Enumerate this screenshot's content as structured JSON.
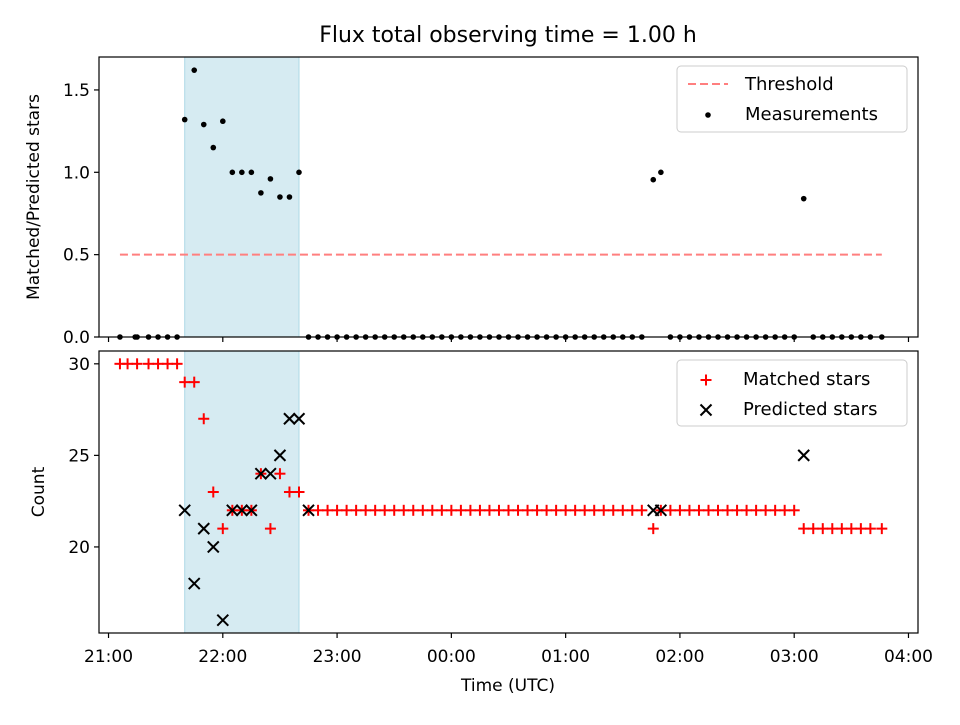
{
  "colors": {
    "shade": "#add8e6",
    "threshold": "#ff7f7f",
    "measurements": "#000000",
    "matched": "#ff0000",
    "predicted": "#000000"
  },
  "chart_data": [
    {
      "type": "scatter",
      "title": "Flux total observing time = 1.00 h",
      "xlabel": "",
      "ylabel": "Matched/Predicted stars",
      "xlim": [
        "20:55",
        "04:05"
      ],
      "ylim": [
        0,
        1.7
      ],
      "x_ticks": [
        "21:00",
        "22:00",
        "23:00",
        "00:00",
        "01:00",
        "02:00",
        "03:00",
        "04:00"
      ],
      "y_ticks": [
        "0.0",
        "0.5",
        "1.0",
        "1.5"
      ],
      "shaded_span": [
        "21:40",
        "22:40"
      ],
      "legend": {
        "placement": "top-right",
        "entries": [
          "Threshold",
          "Measurements"
        ]
      },
      "threshold": {
        "name": "Threshold",
        "y": 0.5,
        "x_range": [
          "21:06",
          "03:46"
        ]
      },
      "series": [
        {
          "name": "Measurements",
          "points": [
            [
              "21:06",
              0
            ],
            [
              "21:14",
              0
            ],
            [
              "21:15",
              0
            ],
            [
              "21:21",
              0
            ],
            [
              "21:26",
              0
            ],
            [
              "21:31",
              0
            ],
            [
              "21:36",
              0
            ],
            [
              "21:40",
              1.32
            ],
            [
              "21:45",
              1.62
            ],
            [
              "21:50",
              1.29
            ],
            [
              "21:55",
              1.15
            ],
            [
              "22:00",
              1.31
            ],
            [
              "22:05",
              1.0
            ],
            [
              "22:10",
              1.0
            ],
            [
              "22:15",
              1.0
            ],
            [
              "22:20",
              0.875
            ],
            [
              "22:25",
              0.96
            ],
            [
              "22:30",
              0.85
            ],
            [
              "22:35",
              0.85
            ],
            [
              "22:40",
              1.0
            ],
            [
              "22:45",
              0
            ],
            [
              "22:50",
              0
            ],
            [
              "22:55",
              0
            ],
            [
              "23:00",
              0
            ],
            [
              "23:05",
              0
            ],
            [
              "23:10",
              0
            ],
            [
              "23:15",
              0
            ],
            [
              "23:20",
              0
            ],
            [
              "23:25",
              0
            ],
            [
              "23:30",
              0
            ],
            [
              "23:35",
              0
            ],
            [
              "23:40",
              0
            ],
            [
              "23:45",
              0
            ],
            [
              "23:50",
              0
            ],
            [
              "23:55",
              0
            ],
            [
              "00:00",
              0
            ],
            [
              "00:05",
              0
            ],
            [
              "00:10",
              0
            ],
            [
              "00:15",
              0
            ],
            [
              "00:20",
              0
            ],
            [
              "00:25",
              0
            ],
            [
              "00:30",
              0
            ],
            [
              "00:35",
              0
            ],
            [
              "00:40",
              0
            ],
            [
              "00:45",
              0
            ],
            [
              "00:50",
              0
            ],
            [
              "00:55",
              0
            ],
            [
              "01:00",
              0
            ],
            [
              "01:05",
              0
            ],
            [
              "01:10",
              0
            ],
            [
              "01:15",
              0
            ],
            [
              "01:20",
              0
            ],
            [
              "01:25",
              0
            ],
            [
              "01:30",
              0
            ],
            [
              "01:35",
              0
            ],
            [
              "01:40",
              0
            ],
            [
              "01:46",
              0.955
            ],
            [
              "01:50",
              1.0
            ],
            [
              "01:55",
              0
            ],
            [
              "02:00",
              0
            ],
            [
              "02:05",
              0
            ],
            [
              "02:10",
              0
            ],
            [
              "02:15",
              0
            ],
            [
              "02:20",
              0
            ],
            [
              "02:25",
              0
            ],
            [
              "02:30",
              0
            ],
            [
              "02:35",
              0
            ],
            [
              "02:40",
              0
            ],
            [
              "02:45",
              0
            ],
            [
              "02:50",
              0
            ],
            [
              "02:55",
              0
            ],
            [
              "03:00",
              0
            ],
            [
              "03:05",
              0.84
            ],
            [
              "03:10",
              0
            ],
            [
              "03:15",
              0
            ],
            [
              "03:20",
              0
            ],
            [
              "03:25",
              0
            ],
            [
              "03:30",
              0
            ],
            [
              "03:35",
              0
            ],
            [
              "03:40",
              0
            ],
            [
              "03:46",
              0
            ]
          ]
        }
      ]
    },
    {
      "type": "scatter",
      "title": "",
      "xlabel": "Time (UTC)",
      "ylabel": "Count",
      "xlim": [
        "20:55",
        "04:05"
      ],
      "ylim": [
        15.3,
        30.7
      ],
      "x_ticks": [
        "21:00",
        "22:00",
        "23:00",
        "00:00",
        "01:00",
        "02:00",
        "03:00",
        "04:00"
      ],
      "y_ticks": [
        "20",
        "25",
        "30"
      ],
      "shaded_span": [
        "21:40",
        "22:40"
      ],
      "legend": {
        "placement": "top-right",
        "entries": [
          "Matched stars",
          "Predicted stars"
        ]
      },
      "series": [
        {
          "name": "Matched stars",
          "points": [
            [
              "21:06",
              30
            ],
            [
              "21:10",
              30
            ],
            [
              "21:15",
              30
            ],
            [
              "21:21",
              30
            ],
            [
              "21:26",
              30
            ],
            [
              "21:31",
              30
            ],
            [
              "21:36",
              30
            ],
            [
              "21:40",
              29
            ],
            [
              "21:45",
              29
            ],
            [
              "21:50",
              27
            ],
            [
              "21:55",
              23
            ],
            [
              "22:00",
              21
            ],
            [
              "22:05",
              22
            ],
            [
              "22:10",
              22
            ],
            [
              "22:15",
              22
            ],
            [
              "22:20",
              24
            ],
            [
              "22:25",
              21
            ],
            [
              "22:30",
              24
            ],
            [
              "22:35",
              23
            ],
            [
              "22:40",
              23
            ],
            [
              "22:45",
              22
            ],
            [
              "22:50",
              22
            ],
            [
              "22:55",
              22
            ],
            [
              "23:00",
              22
            ],
            [
              "23:05",
              22
            ],
            [
              "23:10",
              22
            ],
            [
              "23:15",
              22
            ],
            [
              "23:20",
              22
            ],
            [
              "23:25",
              22
            ],
            [
              "23:30",
              22
            ],
            [
              "23:35",
              22
            ],
            [
              "23:40",
              22
            ],
            [
              "23:45",
              22
            ],
            [
              "23:50",
              22
            ],
            [
              "23:55",
              22
            ],
            [
              "00:00",
              22
            ],
            [
              "00:05",
              22
            ],
            [
              "00:10",
              22
            ],
            [
              "00:15",
              22
            ],
            [
              "00:20",
              22
            ],
            [
              "00:25",
              22
            ],
            [
              "00:30",
              22
            ],
            [
              "00:35",
              22
            ],
            [
              "00:40",
              22
            ],
            [
              "00:45",
              22
            ],
            [
              "00:50",
              22
            ],
            [
              "00:55",
              22
            ],
            [
              "01:00",
              22
            ],
            [
              "01:05",
              22
            ],
            [
              "01:10",
              22
            ],
            [
              "01:15",
              22
            ],
            [
              "01:20",
              22
            ],
            [
              "01:25",
              22
            ],
            [
              "01:30",
              22
            ],
            [
              "01:35",
              22
            ],
            [
              "01:40",
              22
            ],
            [
              "01:46",
              21
            ],
            [
              "01:50",
              22
            ],
            [
              "01:55",
              22
            ],
            [
              "02:00",
              22
            ],
            [
              "02:05",
              22
            ],
            [
              "02:10",
              22
            ],
            [
              "02:15",
              22
            ],
            [
              "02:20",
              22
            ],
            [
              "02:25",
              22
            ],
            [
              "02:30",
              22
            ],
            [
              "02:35",
              22
            ],
            [
              "02:40",
              22
            ],
            [
              "02:45",
              22
            ],
            [
              "02:50",
              22
            ],
            [
              "02:55",
              22
            ],
            [
              "03:00",
              22
            ],
            [
              "03:05",
              21
            ],
            [
              "03:10",
              21
            ],
            [
              "03:15",
              21
            ],
            [
              "03:20",
              21
            ],
            [
              "03:25",
              21
            ],
            [
              "03:30",
              21
            ],
            [
              "03:35",
              21
            ],
            [
              "03:40",
              21
            ],
            [
              "03:46",
              21
            ]
          ]
        },
        {
          "name": "Predicted stars",
          "points": [
            [
              "21:40",
              22
            ],
            [
              "21:45",
              18
            ],
            [
              "21:50",
              21
            ],
            [
              "21:55",
              20
            ],
            [
              "22:00",
              16
            ],
            [
              "22:05",
              22
            ],
            [
              "22:10",
              22
            ],
            [
              "22:15",
              22
            ],
            [
              "22:20",
              24
            ],
            [
              "22:25",
              24
            ],
            [
              "22:30",
              25
            ],
            [
              "22:35",
              27
            ],
            [
              "22:40",
              27
            ],
            [
              "22:45",
              22
            ],
            [
              "01:46",
              22
            ],
            [
              "01:50",
              22
            ],
            [
              "03:05",
              25
            ]
          ]
        }
      ]
    }
  ]
}
